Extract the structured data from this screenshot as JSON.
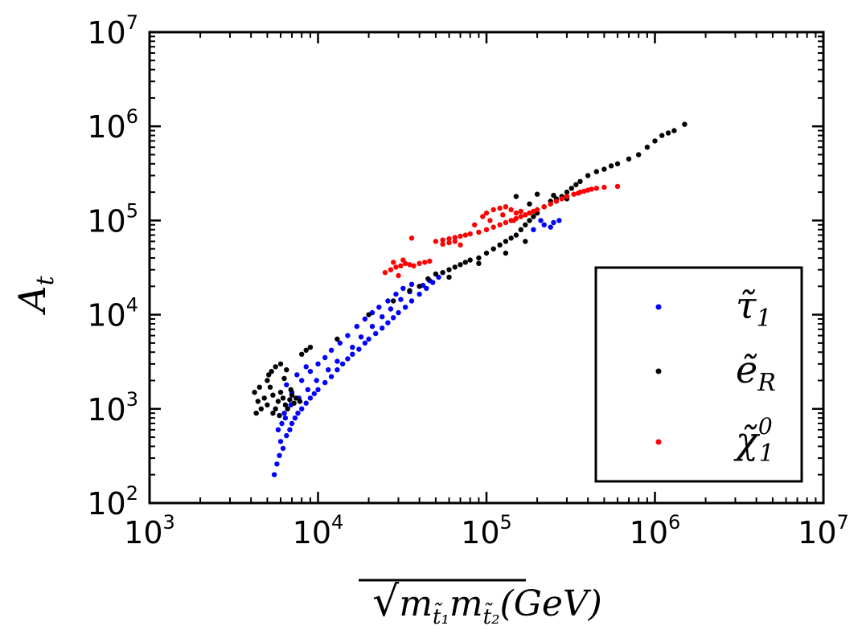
{
  "chart_data": {
    "type": "scatter",
    "title": "",
    "xlabel": "√(m_t̃1 m_t̃2) (GeV)",
    "xlabel_parts": {
      "sqrt": "√",
      "m1": "m",
      "sub1": "t̃₁",
      "m2": "m",
      "sub2": "t̃₂",
      "unit": "(GeV)"
    },
    "ylabel": "A_t",
    "ylabel_parts": {
      "main": "A",
      "sub": "t"
    },
    "xscale": "log",
    "yscale": "log",
    "xlim": [
      1000,
      10000000
    ],
    "ylim": [
      100,
      10000000
    ],
    "x_ticks": [
      {
        "value": 1000,
        "base": "10",
        "exp": "3"
      },
      {
        "value": 10000,
        "base": "10",
        "exp": "4"
      },
      {
        "value": 100000,
        "base": "10",
        "exp": "5"
      },
      {
        "value": 1000000,
        "base": "10",
        "exp": "6"
      },
      {
        "value": 10000000,
        "base": "10",
        "exp": "7"
      }
    ],
    "y_ticks": [
      {
        "value": 100,
        "base": "10",
        "exp": "2"
      },
      {
        "value": 1000,
        "base": "10",
        "exp": "3"
      },
      {
        "value": 10000,
        "base": "10",
        "exp": "4"
      },
      {
        "value": 100000,
        "base": "10",
        "exp": "5"
      },
      {
        "value": 1000000,
        "base": "10",
        "exp": "6"
      },
      {
        "value": 10000000,
        "base": "10",
        "exp": "7"
      }
    ],
    "grid": false,
    "legend_position": "lower-right",
    "series": [
      {
        "name": "τ̃₁",
        "label_main": "τ̃",
        "label_sub": "1",
        "label_sup": "",
        "color": "#0000ff",
        "points": [
          [
            5500,
            200
          ],
          [
            5700,
            260
          ],
          [
            5900,
            320
          ],
          [
            6200,
            380
          ],
          [
            6000,
            450
          ],
          [
            6500,
            520
          ],
          [
            6800,
            600
          ],
          [
            7000,
            700
          ],
          [
            7300,
            800
          ],
          [
            7600,
            900
          ],
          [
            8000,
            1000
          ],
          [
            8500,
            1150
          ],
          [
            9000,
            1300
          ],
          [
            9500,
            1450
          ],
          [
            10000,
            1600
          ],
          [
            11000,
            1900
          ],
          [
            12000,
            2200
          ],
          [
            13000,
            2600
          ],
          [
            14000,
            3000
          ],
          [
            15000,
            3400
          ],
          [
            16000,
            3800
          ],
          [
            17500,
            4300
          ],
          [
            19000,
            5000
          ],
          [
            20000,
            5500
          ],
          [
            22000,
            6300
          ],
          [
            24000,
            7200
          ],
          [
            26000,
            8200
          ],
          [
            28000,
            9300
          ],
          [
            30000,
            10500
          ],
          [
            33000,
            12000
          ],
          [
            36000,
            14000
          ],
          [
            40000,
            16500
          ],
          [
            44000,
            19000
          ],
          [
            48000,
            22000
          ],
          [
            52000,
            25000
          ],
          [
            7000,
            1500
          ],
          [
            8000,
            2000
          ],
          [
            9000,
            2500
          ],
          [
            10000,
            3000
          ],
          [
            11000,
            3500
          ],
          [
            12000,
            4200
          ],
          [
            13500,
            5000
          ],
          [
            15000,
            6000
          ],
          [
            17000,
            7500
          ],
          [
            19000,
            9000
          ],
          [
            21000,
            10500
          ],
          [
            23000,
            12000
          ],
          [
            26000,
            14000
          ],
          [
            29000,
            16500
          ],
          [
            32000,
            19000
          ],
          [
            36000,
            21000
          ],
          [
            6500,
            1800
          ],
          [
            7500,
            2300
          ],
          [
            8500,
            2800
          ],
          [
            6300,
            900
          ],
          [
            6900,
            1100
          ],
          [
            7700,
            1300
          ],
          [
            8700,
            1600
          ],
          [
            9800,
            2000
          ],
          [
            11500,
            2600
          ],
          [
            13000,
            3200
          ],
          [
            16000,
            4500
          ],
          [
            18000,
            5800
          ],
          [
            21000,
            7500
          ],
          [
            24000,
            9500
          ],
          [
            27000,
            11500
          ],
          [
            31000,
            14500
          ],
          [
            35000,
            17500
          ],
          [
            42000,
            20500
          ],
          [
            46000,
            23000
          ],
          [
            5800,
            600
          ],
          [
            6100,
            700
          ],
          [
            6400,
            800
          ],
          [
            190000,
            80000
          ],
          [
            220000,
            90000
          ],
          [
            250000,
            95000
          ],
          [
            270000,
            100000
          ],
          [
            210000,
            100000
          ],
          [
            240000,
            85000
          ]
        ]
      },
      {
        "name": "ẽ_R",
        "label_main": "ẽ",
        "label_sub": "R",
        "label_sup": "",
        "color": "#000000",
        "points": [
          [
            4200,
            1500
          ],
          [
            4400,
            1200
          ],
          [
            4600,
            1000
          ],
          [
            4800,
            1300
          ],
          [
            5000,
            1100
          ],
          [
            5200,
            1700
          ],
          [
            5400,
            1400
          ],
          [
            5600,
            1000
          ],
          [
            5800,
            1200
          ],
          [
            6000,
            1500
          ],
          [
            6200,
            1300
          ],
          [
            6400,
            1100
          ],
          [
            6600,
            1000
          ],
          [
            6800,
            1250
          ],
          [
            7000,
            1400
          ],
          [
            7200,
            1150
          ],
          [
            7400,
            1300
          ],
          [
            5000,
            2000
          ],
          [
            5300,
            2500
          ],
          [
            5600,
            2800
          ],
          [
            6000,
            3000
          ],
          [
            6500,
            2600
          ],
          [
            5400,
            900
          ],
          [
            5900,
            850
          ],
          [
            4500,
            1700
          ],
          [
            4300,
            900
          ],
          [
            5100,
            2300
          ],
          [
            6300,
            2100
          ],
          [
            6900,
            1600
          ],
          [
            7800,
            1200
          ],
          [
            8000,
            3800
          ],
          [
            8500,
            4200
          ],
          [
            9000,
            4500
          ],
          [
            13000,
            5500
          ],
          [
            20000,
            10000
          ],
          [
            28000,
            14000
          ],
          [
            35000,
            18000
          ],
          [
            40000,
            20000
          ],
          [
            45000,
            24000
          ],
          [
            50000,
            27000
          ],
          [
            55000,
            28000
          ],
          [
            60000,
            30000
          ],
          [
            65000,
            32000
          ],
          [
            70000,
            34000
          ],
          [
            75000,
            36000
          ],
          [
            80000,
            38000
          ],
          [
            90000,
            40000
          ],
          [
            100000,
            45000
          ],
          [
            110000,
            50000
          ],
          [
            120000,
            55000
          ],
          [
            130000,
            60000
          ],
          [
            140000,
            65000
          ],
          [
            150000,
            70000
          ],
          [
            160000,
            80000
          ],
          [
            170000,
            90000
          ],
          [
            180000,
            100000
          ],
          [
            190000,
            110000
          ],
          [
            200000,
            120000
          ],
          [
            220000,
            140000
          ],
          [
            240000,
            160000
          ],
          [
            260000,
            170000
          ],
          [
            280000,
            180000
          ],
          [
            300000,
            200000
          ],
          [
            320000,
            220000
          ],
          [
            340000,
            240000
          ],
          [
            360000,
            260000
          ],
          [
            400000,
            300000
          ],
          [
            450000,
            330000
          ],
          [
            500000,
            350000
          ],
          [
            550000,
            380000
          ],
          [
            600000,
            400000
          ],
          [
            700000,
            450000
          ],
          [
            800000,
            500000
          ],
          [
            900000,
            600000
          ],
          [
            1000000,
            700000
          ],
          [
            1100000,
            800000
          ],
          [
            1200000,
            850000
          ],
          [
            1300000,
            900000
          ],
          [
            1500000,
            1050000
          ],
          [
            150000,
            180000
          ],
          [
            200000,
            190000
          ],
          [
            250000,
            185000
          ],
          [
            180000,
            150000
          ],
          [
            300000,
            170000
          ],
          [
            90000,
            35000
          ],
          [
            60000,
            25000
          ],
          [
            130000,
            45000
          ],
          [
            170000,
            60000
          ]
        ]
      },
      {
        "name": "χ̃₁⁰",
        "label_main": "χ̃",
        "label_sub": "1",
        "label_sup": "0",
        "color": "#ff0000",
        "points": [
          [
            25000,
            28000
          ],
          [
            27000,
            30000
          ],
          [
            29000,
            32000
          ],
          [
            31000,
            33000
          ],
          [
            33000,
            35000
          ],
          [
            35000,
            34000
          ],
          [
            37000,
            33000
          ],
          [
            40000,
            35000
          ],
          [
            43000,
            36000
          ],
          [
            46000,
            37000
          ],
          [
            30000,
            26000
          ],
          [
            28000,
            36000
          ],
          [
            32000,
            38000
          ],
          [
            36000,
            65000
          ],
          [
            50000,
            60000
          ],
          [
            55000,
            62000
          ],
          [
            60000,
            64000
          ],
          [
            65000,
            66000
          ],
          [
            70000,
            68000
          ],
          [
            75000,
            70000
          ],
          [
            80000,
            72000
          ],
          [
            90000,
            75000
          ],
          [
            100000,
            80000
          ],
          [
            110000,
            85000
          ],
          [
            120000,
            90000
          ],
          [
            130000,
            95000
          ],
          [
            140000,
            100000
          ],
          [
            150000,
            105000
          ],
          [
            160000,
            110000
          ],
          [
            170000,
            115000
          ],
          [
            180000,
            120000
          ],
          [
            190000,
            125000
          ],
          [
            200000,
            130000
          ],
          [
            220000,
            140000
          ],
          [
            240000,
            150000
          ],
          [
            260000,
            160000
          ],
          [
            280000,
            170000
          ],
          [
            300000,
            180000
          ],
          [
            330000,
            190000
          ],
          [
            360000,
            200000
          ],
          [
            400000,
            210000
          ],
          [
            450000,
            220000
          ],
          [
            500000,
            225000
          ],
          [
            600000,
            230000
          ],
          [
            100000,
            120000
          ],
          [
            110000,
            130000
          ],
          [
            120000,
            135000
          ],
          [
            130000,
            140000
          ],
          [
            140000,
            130000
          ],
          [
            150000,
            120000
          ],
          [
            160000,
            125000
          ],
          [
            95000,
            110000
          ],
          [
            105000,
            100000
          ],
          [
            85000,
            90000
          ],
          [
            125000,
            115000
          ],
          [
            145000,
            100000
          ],
          [
            70000,
            55000
          ],
          [
            65000,
            60000
          ],
          [
            60000,
            58000
          ],
          [
            55000,
            56000
          ],
          [
            420000,
            215000
          ],
          [
            380000,
            205000
          ],
          [
            350000,
            195000
          ]
        ]
      }
    ]
  }
}
